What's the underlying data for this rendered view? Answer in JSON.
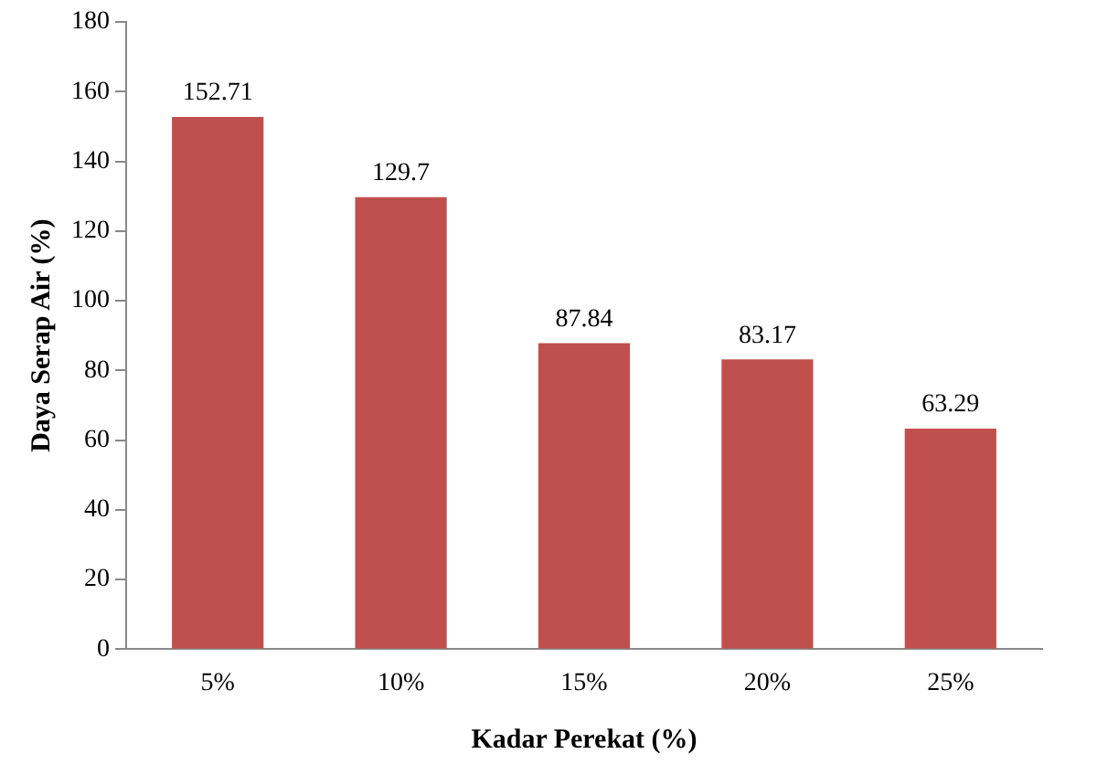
{
  "chart_data": {
    "type": "bar",
    "xlabel": "Kadar Perekat (%)",
    "ylabel": "Daya Serap Air (%)",
    "categories": [
      "5%",
      "10%",
      "15%",
      "20%",
      "25%"
    ],
    "values": [
      152.71,
      129.7,
      87.84,
      83.17,
      63.29
    ],
    "color": "#c0504d",
    "ylim": [
      0,
      180
    ],
    "yticks": [
      0,
      20,
      40,
      60,
      80,
      100,
      120,
      140,
      160,
      180
    ],
    "grid": false,
    "data_labels": true
  }
}
